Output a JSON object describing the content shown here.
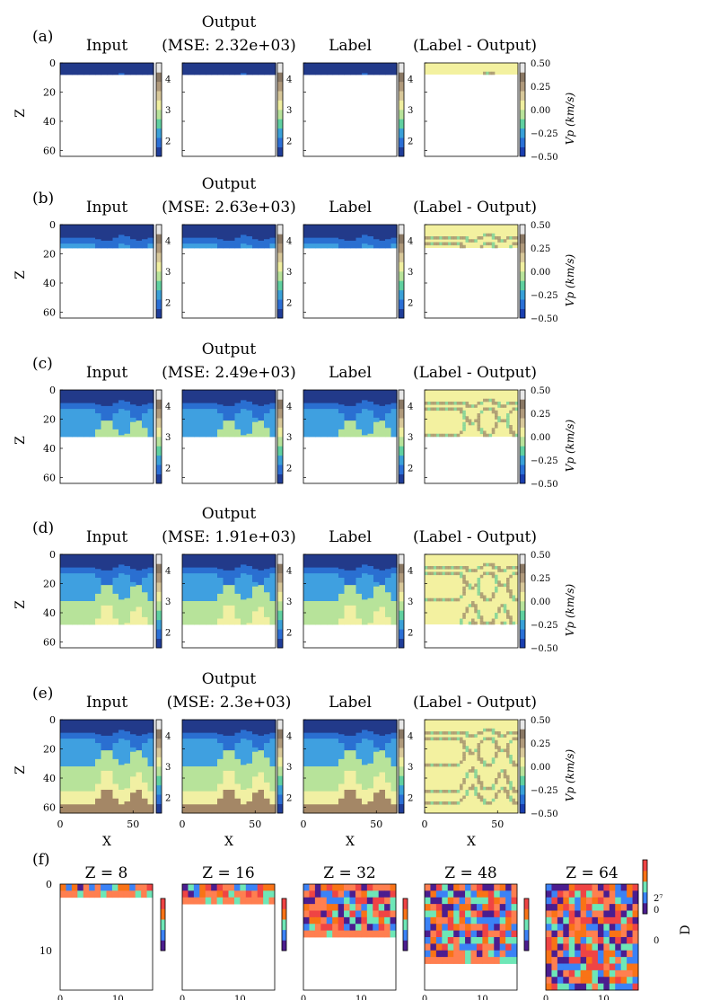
{
  "panel_letters": [
    "(a)",
    "(b)",
    "(c)",
    "(d)",
    "(e)",
    "(f)"
  ],
  "column_titles": {
    "input": "Input",
    "output_top": "Output",
    "label": "Label",
    "diff": "(Label - Output)"
  },
  "mse_labels": [
    "(MSE: 2.32e+03)",
    "(MSE: 2.63e+03)",
    "(MSE: 2.49e+03)",
    "(MSE: 1.91e+03)",
    "(MSE: 2.3e+03)"
  ],
  "axis": {
    "z_label": "Z",
    "x_label": "X",
    "vp_label": "Vp (km/s)",
    "d_label": "D"
  },
  "slice_titles": [
    "Z = 8",
    "Z = 16",
    "Z = 32",
    "Z = 48",
    "Z = 64"
  ],
  "colors": {
    "c1": "#223a8a",
    "c2": "#2a6fd1",
    "c3": "#3fa0e0",
    "c4": "#b7e39a",
    "c5": "#f1f0a3",
    "c6": "#a48766",
    "diff_bg": "#f3f1a0",
    "d_colors": [
      "#4b1d8f",
      "#ff7f50",
      "#3b82f6",
      "#6ee7b7",
      "#ef4444",
      "#f97316"
    ]
  },
  "chart_data": [
    {
      "type": "heatmap",
      "panel": "velocity-grids",
      "rows": 5,
      "columns": [
        "Input",
        "Output",
        "Label",
        "(Label - Output)"
      ],
      "z_ticks": [
        0,
        20,
        40,
        60
      ],
      "x_ticks": [
        0,
        50
      ],
      "z_range": [
        0,
        64
      ],
      "x_range": [
        0,
        64
      ],
      "revealed_depth": [
        8,
        16,
        32,
        48,
        64
      ],
      "vp_colorbar_ticks": [
        2,
        3,
        4
      ],
      "vp_range": [
        1.5,
        4.5
      ],
      "diff_colorbar_ticks": [
        0.5,
        0.25,
        0.0,
        -0.25,
        -0.5
      ],
      "diff_colorbar_tick_labels": [
        "0.50",
        "0.25",
        "0.00",
        "−0.25",
        "−0.50"
      ],
      "diff_range": [
        -0.5,
        0.5
      ]
    },
    {
      "type": "heatmap",
      "panel": "f",
      "slices": [
        "Z = 8",
        "Z = 16",
        "Z = 32",
        "Z = 48",
        "Z = 64"
      ],
      "grid_size": 16,
      "revealed_rows": [
        2,
        3,
        8,
        12,
        16
      ],
      "y_ticks": [
        0,
        10
      ],
      "x_ticks": [
        0,
        10
      ],
      "d_colorbar_tick_labels": [
        "0",
        "2⁷"
      ]
    }
  ]
}
